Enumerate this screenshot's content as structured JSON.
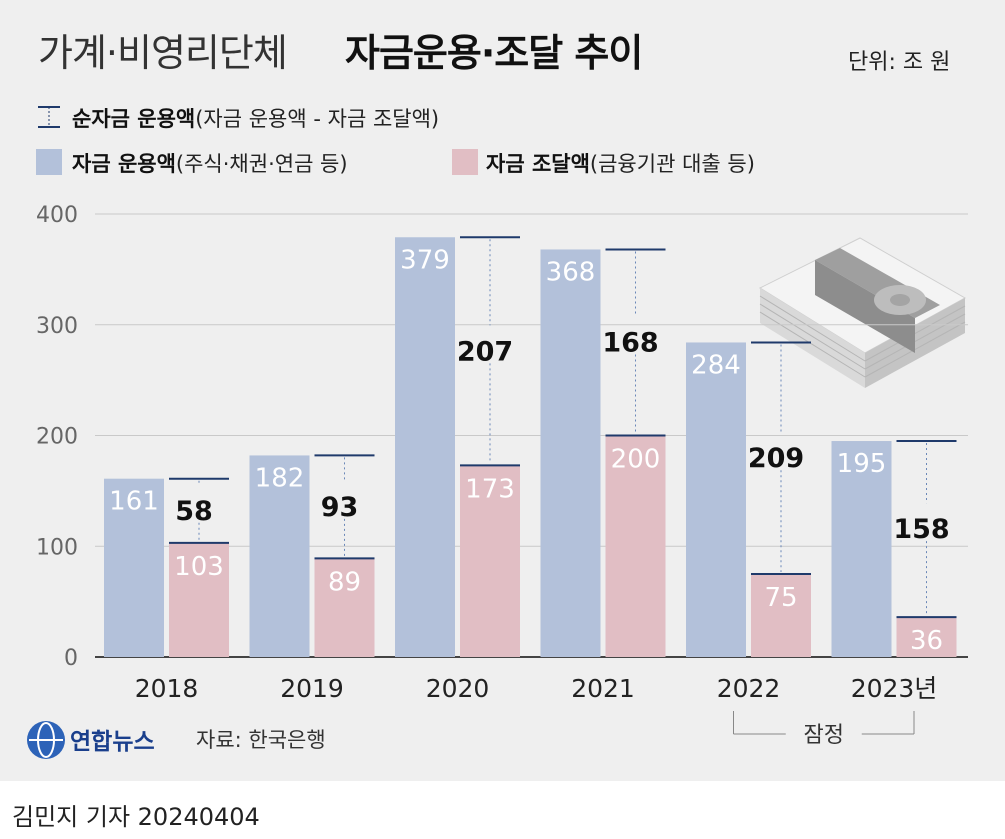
{
  "header": {
    "title_light": "가계·비영리단체",
    "title_bold": "자금운용·조달 추이",
    "unit": "단위: 조 원"
  },
  "legend": {
    "net_label": "순자금 운용액",
    "net_desc": "(자금 운용액 - 자금 조달액)",
    "invest_label": "자금 운용액",
    "invest_desc": "(주식·채권·연금 등)",
    "fund_label": "자금 조달액",
    "fund_desc": "(금융기관 대출 등)"
  },
  "colors": {
    "invest": "#b3c1da",
    "fund": "#e1bec4",
    "net_line": "#1f3a6b",
    "grid": "#c9c9c9",
    "background": "#efefef"
  },
  "chart_data": {
    "type": "bar",
    "categories": [
      "2018",
      "2019",
      "2020",
      "2021",
      "2022",
      "2023년"
    ],
    "yticks": [
      "0",
      "100",
      "200",
      "300",
      "400"
    ],
    "ylim": [
      0,
      400
    ],
    "series": [
      {
        "name": "자금 운용액",
        "values": [
          161,
          182,
          379,
          368,
          284,
          195
        ]
      },
      {
        "name": "자금 조달액",
        "values": [
          103,
          89,
          173,
          200,
          75,
          36
        ]
      },
      {
        "name": "순자금 운용액",
        "values": [
          58,
          93,
          207,
          168,
          209,
          158
        ]
      }
    ],
    "value_labels": {
      "invest": [
        "161",
        "182",
        "379",
        "368",
        "284",
        "195"
      ],
      "fund": [
        "103",
        "89",
        "173",
        "200",
        "75",
        "36"
      ],
      "net": [
        "58",
        "93",
        "207",
        "168",
        "209",
        "158"
      ]
    },
    "provisional_note": "잠정",
    "grid": true
  },
  "footer": {
    "logo_text": "연합뉴스",
    "source": "자료: 한국은행",
    "author": "김민지 기자  20240404"
  }
}
